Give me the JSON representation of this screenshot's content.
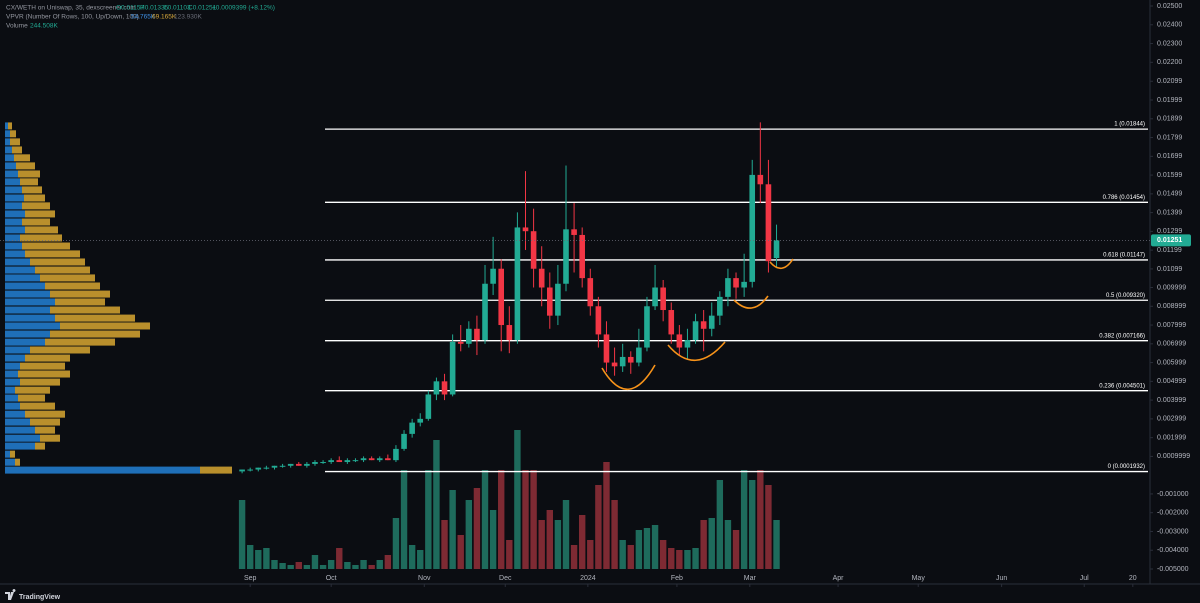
{
  "header": {
    "symbol": "CX/WETH on Uniswap, 35, dexscreener.com",
    "ohlc": [
      "O0.01157",
      "H0.01335",
      "L0.01103",
      "C0.01251",
      "+0.0009399 (+8.12%)"
    ],
    "vpvr": "VPVR (Number Of Rows, 100, Up/Down, 100)",
    "vpvr_values": [
      "54.765K",
      "69.165K",
      "123.930K"
    ],
    "volume": "Volume",
    "volume_value": "244.508K"
  },
  "chart_data": {
    "type": "candlestick",
    "up_color": "#22ab94",
    "down_color": "#f23645",
    "volume_up_color": "#1e6b5c",
    "volume_down_color": "#7e2a33",
    "profile_up_color": "#1f6fb8",
    "profile_down_color": "#b98f2c",
    "fib_color": "#ffffff",
    "xlim": [
      -1,
      112
    ],
    "ylim": [
      -0.005,
      0.025
    ],
    "xticks": [
      {
        "value": 1,
        "label": "Sep"
      },
      {
        "value": 11,
        "label": "Oct"
      },
      {
        "value": 22.5,
        "label": "Nov"
      },
      {
        "value": 32.5,
        "label": "Dec"
      },
      {
        "value": 42.7,
        "label": "2024"
      },
      {
        "value": 53.7,
        "label": "Feb"
      },
      {
        "value": 62.7,
        "label": "Mar"
      },
      {
        "value": 73.6,
        "label": "Apr"
      },
      {
        "value": 83.5,
        "label": "May"
      },
      {
        "value": 93.8,
        "label": "Jun"
      },
      {
        "value": 104,
        "label": "Jul"
      },
      {
        "value": 110,
        "label": "20"
      }
    ],
    "yticks": [
      {
        "value": 0.025,
        "label": "0.02500"
      },
      {
        "value": 0.024,
        "label": "0.02400"
      },
      {
        "value": 0.023,
        "label": "0.02300"
      },
      {
        "value": 0.022,
        "label": "0.02200"
      },
      0.02099,
      0.01999,
      0.01899,
      0.01799,
      0.01699,
      0.01599,
      0.01499,
      0.01399,
      0.01299,
      0.01199,
      0.01099,
      0.009999,
      0.008999,
      0.007999,
      0.006999,
      0.005999,
      0.004999,
      0.003999,
      0.002999,
      0.001999,
      0.0009999,
      {
        "value": -0.001,
        "label": "-0.001000"
      },
      {
        "value": -0.002,
        "label": "-0.002000"
      },
      {
        "value": -0.003,
        "label": "-0.003000"
      },
      {
        "value": -0.004,
        "label": "-0.004000"
      },
      {
        "value": -0.005,
        "label": "-0.005000"
      }
    ],
    "ohlc": [
      [
        0.0002,
        0.0003,
        0.0001,
        0.0003
      ],
      [
        0.0003,
        0.0004,
        0.0002,
        0.0003
      ],
      [
        0.0003,
        0.0004,
        0.0002,
        0.0004
      ],
      [
        0.0004,
        0.0005,
        0.0003,
        0.0004
      ],
      [
        0.0004,
        0.0005,
        0.0003,
        0.0005
      ],
      [
        0.0005,
        0.0006,
        0.0004,
        0.0005
      ],
      [
        0.0005,
        0.0006,
        0.0004,
        0.0006
      ],
      [
        0.0006,
        0.0007,
        0.0005,
        0.0005
      ],
      [
        0.0005,
        0.0007,
        0.0004,
        0.0006
      ],
      [
        0.0006,
        0.0008,
        0.0005,
        0.0007
      ],
      [
        0.0007,
        0.0008,
        0.0006,
        0.0007
      ],
      [
        0.0007,
        0.0009,
        0.0006,
        0.0008
      ],
      [
        0.0008,
        0.001,
        0.0007,
        0.0007
      ],
      [
        0.0007,
        0.0009,
        0.0006,
        0.0008
      ],
      [
        0.0008,
        0.0009,
        0.0007,
        0.0008
      ],
      [
        0.0008,
        0.001,
        0.0007,
        0.0009
      ],
      [
        0.0009,
        0.001,
        0.0008,
        0.0008
      ],
      [
        0.0008,
        0.001,
        0.0007,
        0.0009
      ],
      [
        0.0009,
        0.0011,
        0.0008,
        0.0008
      ],
      [
        0.0008,
        0.0016,
        0.0007,
        0.0014
      ],
      [
        0.0014,
        0.0024,
        0.0013,
        0.0022
      ],
      [
        0.0022,
        0.003,
        0.002,
        0.0028
      ],
      [
        0.0028,
        0.0033,
        0.0026,
        0.003
      ],
      [
        0.003,
        0.0045,
        0.0029,
        0.0043
      ],
      [
        0.0043,
        0.0052,
        0.004,
        0.005
      ],
      [
        0.005,
        0.0054,
        0.004,
        0.0043
      ],
      [
        0.0043,
        0.0075,
        0.0042,
        0.0071
      ],
      [
        0.0071,
        0.008,
        0.0066,
        0.007
      ],
      [
        0.007,
        0.0082,
        0.0068,
        0.0078
      ],
      [
        0.0078,
        0.0085,
        0.0064,
        0.0072
      ],
      [
        0.0072,
        0.0112,
        0.007,
        0.0102
      ],
      [
        0.0102,
        0.0127,
        0.0096,
        0.011
      ],
      [
        0.011,
        0.0115,
        0.0066,
        0.008
      ],
      [
        0.008,
        0.009,
        0.0065,
        0.0072
      ],
      [
        0.0072,
        0.014,
        0.007,
        0.0132
      ],
      [
        0.0132,
        0.0162,
        0.012,
        0.013
      ],
      [
        0.013,
        0.0142,
        0.01,
        0.011
      ],
      [
        0.011,
        0.0122,
        0.009,
        0.01
      ],
      [
        0.01,
        0.0108,
        0.0078,
        0.0085
      ],
      [
        0.0085,
        0.0112,
        0.008,
        0.0102
      ],
      [
        0.0102,
        0.0165,
        0.0098,
        0.0131
      ],
      [
        0.0131,
        0.0145,
        0.0108,
        0.0128
      ],
      [
        0.0128,
        0.0132,
        0.01,
        0.0105
      ],
      [
        0.0105,
        0.011,
        0.0085,
        0.009
      ],
      [
        0.009,
        0.0095,
        0.0068,
        0.0075
      ],
      [
        0.0075,
        0.0082,
        0.0055,
        0.006
      ],
      [
        0.006,
        0.0068,
        0.0053,
        0.0058
      ],
      [
        0.0058,
        0.007,
        0.0055,
        0.0063
      ],
      [
        0.0063,
        0.0066,
        0.0054,
        0.006
      ],
      [
        0.006,
        0.0078,
        0.0058,
        0.0068
      ],
      [
        0.0068,
        0.0095,
        0.0066,
        0.009
      ],
      [
        0.009,
        0.0112,
        0.0088,
        0.01
      ],
      [
        0.01,
        0.0104,
        0.0082,
        0.0088
      ],
      [
        0.0088,
        0.0092,
        0.007,
        0.0075
      ],
      [
        0.0075,
        0.008,
        0.0064,
        0.0068
      ],
      [
        0.0068,
        0.0078,
        0.0062,
        0.0072
      ],
      [
        0.0072,
        0.0086,
        0.007,
        0.0082
      ],
      [
        0.0082,
        0.0088,
        0.0066,
        0.0078
      ],
      [
        0.0078,
        0.0092,
        0.0074,
        0.0085
      ],
      [
        0.0085,
        0.0098,
        0.008,
        0.0095
      ],
      [
        0.0095,
        0.011,
        0.009,
        0.0105
      ],
      [
        0.0105,
        0.0108,
        0.0094,
        0.01
      ],
      [
        0.01,
        0.0118,
        0.0095,
        0.0103
      ],
      [
        0.0103,
        0.0168,
        0.01,
        0.016
      ],
      [
        0.016,
        0.0188,
        0.0145,
        0.0155
      ],
      [
        0.0155,
        0.0168,
        0.0108,
        0.0114
      ],
      [
        0.01157,
        0.01335,
        0.01103,
        0.01251
      ]
    ],
    "volume": [
      345,
      120,
      95,
      105,
      45,
      30,
      20,
      35,
      20,
      70,
      20,
      45,
      105,
      35,
      20,
      45,
      20,
      45,
      70,
      255,
      495,
      120,
      95,
      495,
      645,
      245,
      395,
      170,
      345,
      405,
      495,
      295,
      495,
      145,
      695,
      495,
      495,
      245,
      295,
      245,
      345,
      120,
      270,
      145,
      420,
      535,
      345,
      145,
      120,
      195,
      205,
      220,
      145,
      105,
      95,
      95,
      105,
      245,
      255,
      445,
      245,
      195,
      495,
      445,
      495,
      420,
      245
    ],
    "profile": {
      "prices": [
        0.01861,
        0.01819,
        0.01776,
        0.01733,
        0.01691,
        0.01648,
        0.01605,
        0.01563,
        0.0152,
        0.01477,
        0.01435,
        0.01392,
        0.01349,
        0.01307,
        0.01264,
        0.01221,
        0.01179,
        0.01136,
        0.01093,
        0.01051,
        0.01008,
        0.00965,
        0.00923,
        0.0088,
        0.00837,
        0.00795,
        0.00752,
        0.00709,
        0.00667,
        0.00624,
        0.00581,
        0.00539,
        0.00496,
        0.00453,
        0.00411,
        0.00368,
        0.00325,
        0.00283,
        0.0024,
        0.00197,
        0.00155,
        0.00112,
        0.00069,
        0.00027
      ],
      "up": [
        3,
        5,
        5,
        7,
        9,
        11,
        13,
        15,
        17,
        19,
        17,
        20,
        17,
        20,
        15,
        17,
        20,
        25,
        30,
        35,
        40,
        45,
        50,
        45,
        50,
        55,
        45,
        40,
        25,
        20,
        15,
        13,
        15,
        10,
        13,
        15,
        20,
        25,
        30,
        35,
        30,
        5,
        10,
        195
      ],
      "down": [
        4,
        6,
        10,
        10,
        16,
        19,
        22,
        18,
        20,
        21,
        28,
        30,
        28,
        33,
        42,
        48,
        55,
        55,
        55,
        55,
        55,
        60,
        50,
        70,
        80,
        90,
        90,
        70,
        60,
        45,
        45,
        52,
        40,
        35,
        27,
        35,
        40,
        30,
        20,
        20,
        10,
        5,
        5,
        32
      ]
    },
    "fib_levels": [
      {
        "value": 0.01844,
        "label": "1 (0.01844)"
      },
      {
        "value": 0.01454,
        "label": "0.786 (0.01454)"
      },
      {
        "value": 0.01147,
        "label": "0.618 (0.01147)"
      },
      {
        "value": 0.00932,
        "label": "0.5 (0.009320)"
      },
      {
        "value": 0.007166,
        "label": "0.382 (0.007166)"
      },
      {
        "value": 0.004501,
        "label": "0.236 (0.004501)"
      },
      {
        "value": 0.0001932,
        "label": "0 (0.0001932)"
      }
    ],
    "last_price": {
      "value": 0.01251,
      "label": "0.01251"
    }
  },
  "footer": {
    "brand": "TradingView"
  }
}
